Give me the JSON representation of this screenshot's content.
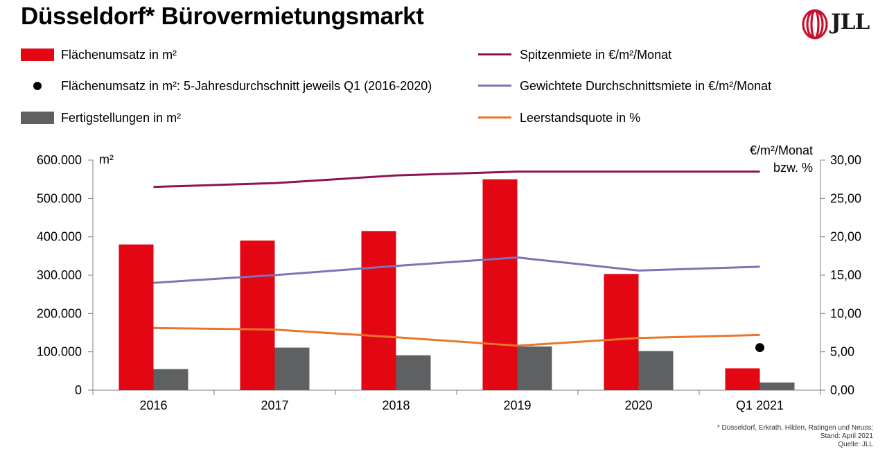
{
  "title": "Düsseldorf* Bürovermietungsmarkt",
  "logo": {
    "text": "JLL",
    "color": "#c8102e"
  },
  "legend": {
    "flaechenumsatz": "Flächenumsatz in m²",
    "durchschnitt": "Flächenumsatz in m²: 5-Jahresdurchschnitt jeweils Q1 (2016-2020)",
    "fertigstellungen": "Fertigstellungen in m²",
    "spitzenmiete": "Spitzenmiete in €/m²/Monat",
    "durchschnittsmiete": "Gewichtete Durchschnittsmiete in €/m²/Monat",
    "leerstand": "Leerstandsquote in %"
  },
  "footnote": {
    "line1": "* Düsseldorf, Erkrath, Hilden, Ratingen und Neuss;",
    "line2": "Stand: April 2021",
    "line3": "Quelle: JLL"
  },
  "colors": {
    "red": "#e30613",
    "grey": "#5f6062",
    "maroon": "#8b1450",
    "purple": "#7f72b6",
    "orange": "#e8772a",
    "black": "#000000"
  },
  "chart_data": {
    "type": "bar",
    "categories": [
      "2016",
      "2017",
      "2018",
      "2019",
      "2020",
      "Q1 2021"
    ],
    "y_left": {
      "label": "m²",
      "ylim": [
        0,
        600000
      ],
      "ticks": [
        "0",
        "100.000",
        "200.000",
        "300.000",
        "400.000",
        "500.000",
        "600.000"
      ]
    },
    "y_right": {
      "label_line1": "€/m²/Monat",
      "label_line2": "bzw. %",
      "ylim": [
        0,
        30
      ],
      "ticks": [
        "0,00",
        "5,00",
        "10,00",
        "15,00",
        "20,00",
        "25,00",
        "30,00"
      ]
    },
    "series": [
      {
        "name": "Flächenumsatz in m²",
        "kind": "bar",
        "axis": "left",
        "color": "#e30613",
        "values": [
          380000,
          390000,
          415000,
          550000,
          303000,
          57000
        ]
      },
      {
        "name": "Fertigstellungen in m²",
        "kind": "bar",
        "axis": "left",
        "color": "#5f6062",
        "values": [
          55000,
          111000,
          91000,
          114000,
          102000,
          20000
        ]
      },
      {
        "name": "Spitzenmiete in €/m²/Monat",
        "kind": "line",
        "axis": "right",
        "color": "#8b1450",
        "values": [
          26.5,
          27.0,
          28.0,
          28.5,
          28.5,
          28.5
        ]
      },
      {
        "name": "Gewichtete Durchschnittsmiete in €/m²/Monat",
        "kind": "line",
        "axis": "right",
        "color": "#7f72b6",
        "values": [
          14.0,
          15.0,
          16.2,
          17.3,
          15.6,
          16.1
        ]
      },
      {
        "name": "Leerstandsquote in %",
        "kind": "line",
        "axis": "right",
        "color": "#e8772a",
        "values": [
          8.1,
          7.9,
          6.9,
          5.8,
          6.8,
          7.2
        ]
      },
      {
        "name": "Flächenumsatz in m²: 5-Jahresdurchschnitt jeweils Q1 (2016-2020)",
        "kind": "point",
        "axis": "left",
        "color": "#000000",
        "category": "Q1 2021",
        "value": 111000
      }
    ],
    "grid": false
  }
}
